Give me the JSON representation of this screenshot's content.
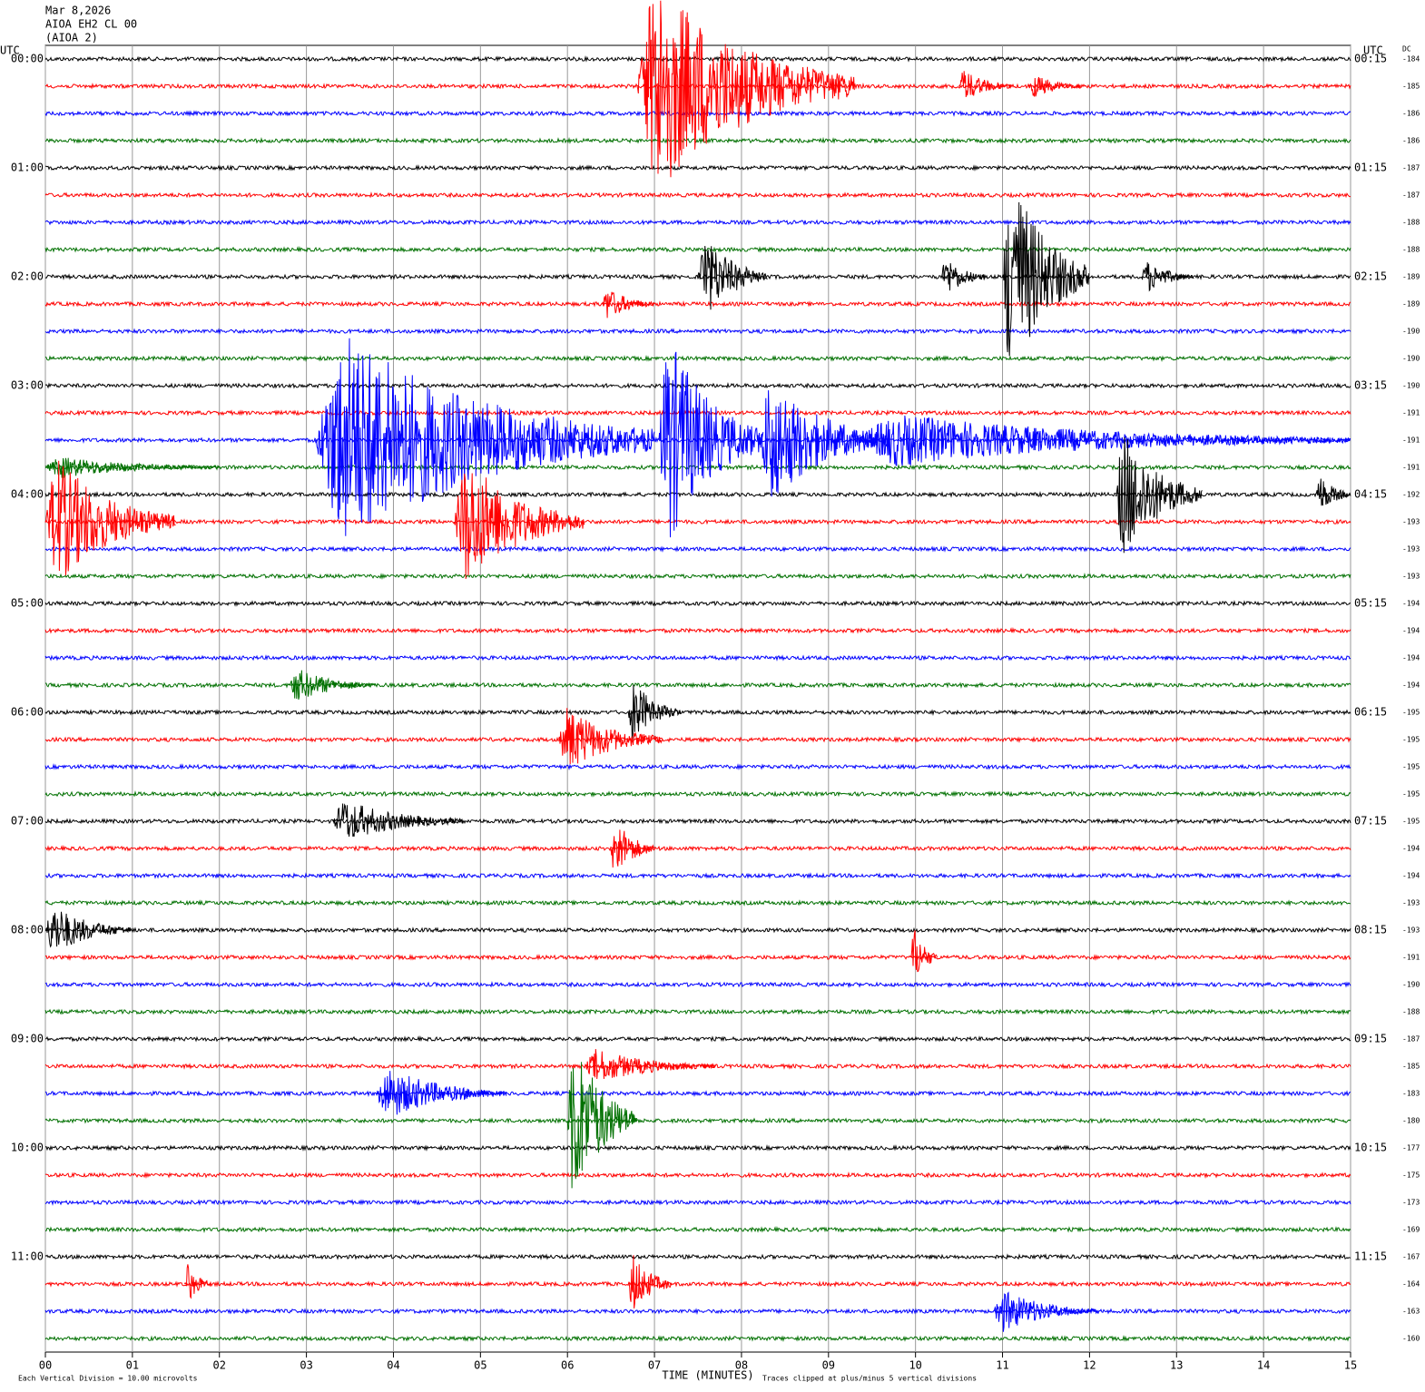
{
  "chart_data": {
    "type": "helicorder",
    "title_lines": [
      "Mar 8,2026",
      "AIOA EH2 CL 00",
      "(AIOA 2)"
    ],
    "left_axis_label": "UTC",
    "right_axis_label": "UTC",
    "dc_label": "DC",
    "xlabel": "TIME (MINUTES)",
    "footer_left": "Each Vertical Division =   10.00 microvolts",
    "footer_right": "Traces clipped at plus/minus 5 vertical divisions",
    "xlim": [
      0,
      15
    ],
    "xticks": [
      {
        "value": 0,
        "label": "00"
      },
      {
        "value": 1,
        "label": "01"
      },
      {
        "value": 2,
        "label": "02"
      },
      {
        "value": 3,
        "label": "03"
      },
      {
        "value": 4,
        "label": "04"
      },
      {
        "value": 5,
        "label": "05"
      },
      {
        "value": 6,
        "label": "06"
      },
      {
        "value": 7,
        "label": "07"
      },
      {
        "value": 8,
        "label": "08"
      },
      {
        "value": 9,
        "label": "09"
      },
      {
        "value": 10,
        "label": "10"
      },
      {
        "value": 11,
        "label": "11"
      },
      {
        "value": 12,
        "label": "12"
      },
      {
        "value": 13,
        "label": "13"
      },
      {
        "value": 14,
        "label": "14"
      },
      {
        "value": 15,
        "label": "15"
      }
    ],
    "grid": true,
    "colors": [
      "#000000",
      "#ff0000",
      "#0000ff",
      "#007000"
    ],
    "left_labels": [
      "00:00",
      null,
      null,
      null,
      "01:00",
      null,
      null,
      null,
      "02:00",
      null,
      null,
      null,
      "03:00",
      null,
      null,
      null,
      "04:00",
      null,
      null,
      null,
      "05:00",
      null,
      null,
      null,
      "06:00",
      null,
      null,
      null,
      "07:00",
      null,
      null,
      null,
      "08:00",
      null,
      null,
      null,
      "09:00",
      null,
      null,
      null,
      "10:00",
      null,
      null,
      null,
      "11:00",
      null,
      null,
      null
    ],
    "right_labels": [
      "00:15",
      null,
      null,
      null,
      "01:15",
      null,
      null,
      null,
      "02:15",
      null,
      null,
      null,
      "03:15",
      null,
      null,
      null,
      "04:15",
      null,
      null,
      null,
      "05:15",
      null,
      null,
      null,
      "06:15",
      null,
      null,
      null,
      "07:15",
      null,
      null,
      null,
      "08:15",
      null,
      null,
      null,
      "09:15",
      null,
      null,
      null,
      "10:15",
      null,
      null,
      null,
      "11:15",
      null,
      null,
      null
    ],
    "dc": [
      -184,
      -185,
      -186,
      -186,
      -187,
      -187,
      -188,
      -188,
      -189,
      -189,
      -190,
      -190,
      -190,
      -191,
      -191,
      -191,
      -192,
      -193,
      -193,
      -193,
      -194,
      -194,
      -194,
      -194,
      -195,
      -195,
      -195,
      -195,
      -195,
      -194,
      -194,
      -193,
      -193,
      -191,
      -190,
      -188,
      -187,
      -185,
      -183,
      -180,
      -177,
      -175,
      -173,
      -169,
      -167,
      -164,
      -163,
      -160
    ],
    "events": [
      {
        "trace": 1,
        "minute": 6.8,
        "duration": 2.5,
        "amplitude": 5
      },
      {
        "trace": 1,
        "minute": 10.5,
        "duration": 0.6,
        "amplitude": 0.8
      },
      {
        "trace": 1,
        "minute": 11.3,
        "duration": 0.6,
        "amplitude": 0.6
      },
      {
        "trace": 8,
        "minute": 7.5,
        "duration": 0.8,
        "amplitude": 2
      },
      {
        "trace": 8,
        "minute": 10.3,
        "duration": 0.5,
        "amplitude": 1
      },
      {
        "trace": 8,
        "minute": 11.0,
        "duration": 1.0,
        "amplitude": 5
      },
      {
        "trace": 8,
        "minute": 12.6,
        "duration": 0.6,
        "amplitude": 0.8
      },
      {
        "trace": 9,
        "minute": 6.4,
        "duration": 0.6,
        "amplitude": 0.8
      },
      {
        "trace": 14,
        "minute": 3.1,
        "duration": 3.9,
        "amplitude": 5
      },
      {
        "trace": 14,
        "minute": 7.05,
        "duration": 1.2,
        "amplitude": 5
      },
      {
        "trace": 14,
        "minute": 8.2,
        "duration": 1.5,
        "amplitude": 3
      },
      {
        "trace": 14,
        "minute": 9.3,
        "duration": 6,
        "amplitude": 1.2
      },
      {
        "trace": 15,
        "minute": 0.0,
        "duration": 2.0,
        "amplitude": 0.5
      },
      {
        "trace": 16,
        "minute": 12.3,
        "duration": 1.0,
        "amplitude": 3
      },
      {
        "trace": 16,
        "minute": 14.6,
        "duration": 0.4,
        "amplitude": 1
      },
      {
        "trace": 17,
        "minute": 0.0,
        "duration": 1.5,
        "amplitude": 3
      },
      {
        "trace": 17,
        "minute": 4.7,
        "duration": 1.5,
        "amplitude": 3
      },
      {
        "trace": 23,
        "minute": 2.8,
        "duration": 1.0,
        "amplitude": 0.8
      },
      {
        "trace": 24,
        "minute": 6.7,
        "duration": 0.6,
        "amplitude": 1.5
      },
      {
        "trace": 25,
        "minute": 5.9,
        "duration": 1.2,
        "amplitude": 1.5
      },
      {
        "trace": 28,
        "minute": 3.3,
        "duration": 1.5,
        "amplitude": 1
      },
      {
        "trace": 29,
        "minute": 6.5,
        "duration": 0.5,
        "amplitude": 1.5
      },
      {
        "trace": 32,
        "minute": 0.0,
        "duration": 1.0,
        "amplitude": 1.2
      },
      {
        "trace": 33,
        "minute": 9.95,
        "duration": 0.3,
        "amplitude": 1.5
      },
      {
        "trace": 37,
        "minute": 6.2,
        "duration": 1.5,
        "amplitude": 0.8
      },
      {
        "trace": 38,
        "minute": 3.8,
        "duration": 1.5,
        "amplitude": 1.2
      },
      {
        "trace": 39,
        "minute": 6.0,
        "duration": 0.8,
        "amplitude": 4
      },
      {
        "trace": 45,
        "minute": 1.6,
        "duration": 0.3,
        "amplitude": 1
      },
      {
        "trace": 45,
        "minute": 6.7,
        "duration": 0.5,
        "amplitude": 1.5
      },
      {
        "trace": 46,
        "minute": 10.9,
        "duration": 1.2,
        "amplitude": 1
      }
    ]
  }
}
